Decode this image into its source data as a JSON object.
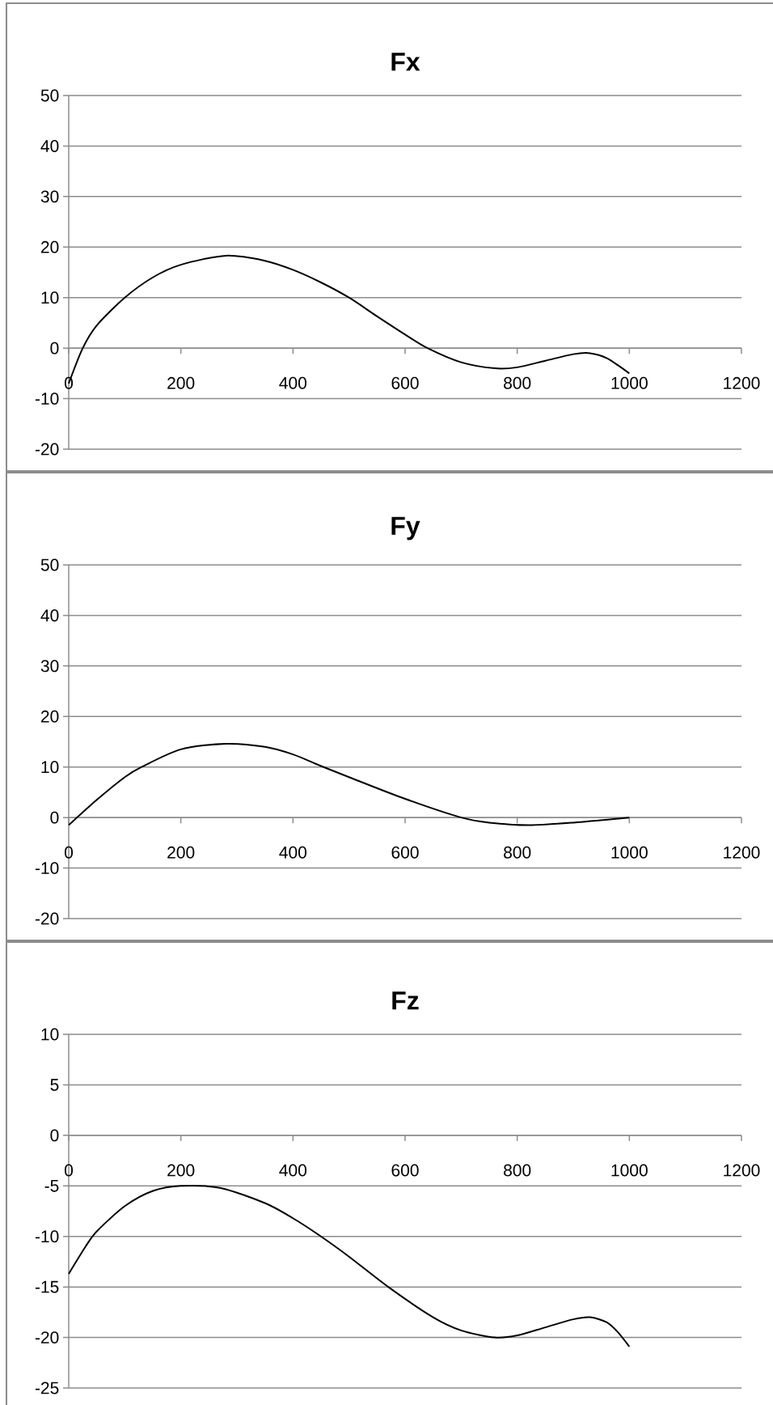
{
  "chart_data": [
    {
      "type": "line",
      "title": "Fx",
      "color": "#000000",
      "grid": "y",
      "xlim": [
        0,
        1200
      ],
      "xticks": [
        0,
        200,
        400,
        600,
        800,
        1000,
        1200
      ],
      "ylim": [
        -20,
        50
      ],
      "yticks": [
        -20,
        -10,
        0,
        10,
        20,
        30,
        40,
        50
      ],
      "x": [
        0,
        25,
        50,
        100,
        150,
        200,
        280,
        350,
        400,
        450,
        500,
        550,
        600,
        640,
        700,
        760,
        800,
        850,
        900,
        930,
        960,
        1000
      ],
      "values": [
        -7,
        0,
        4.5,
        10,
        14,
        16.5,
        18.3,
        17.3,
        15.5,
        13,
        10,
        6.3,
        2.7,
        0,
        -2.8,
        -4,
        -3.8,
        -2.5,
        -1.2,
        -1,
        -2,
        -5
      ]
    },
    {
      "type": "line",
      "title": "Fy",
      "color": "#000000",
      "grid": "y",
      "xlim": [
        0,
        1200
      ],
      "xticks": [
        0,
        200,
        400,
        600,
        800,
        1000,
        1200
      ],
      "ylim": [
        -20,
        50
      ],
      "yticks": [
        -20,
        -10,
        0,
        10,
        20,
        30,
        40,
        50
      ],
      "x": [
        0,
        50,
        100,
        130,
        200,
        280,
        350,
        400,
        450,
        500,
        600,
        700,
        750,
        820,
        900,
        1000
      ],
      "values": [
        -1.5,
        3.5,
        8,
        10,
        13.5,
        14.6,
        14,
        12.5,
        10.2,
        8,
        3.7,
        0,
        -1,
        -1.5,
        -1,
        0
      ]
    },
    {
      "type": "line",
      "title": "Fz",
      "color": "#000000",
      "grid": "y",
      "xlim": [
        0,
        1200
      ],
      "xticks": [
        0,
        200,
        400,
        600,
        800,
        1000,
        1200
      ],
      "ylim": [
        -25,
        10
      ],
      "yticks": [
        -25,
        -20,
        -15,
        -10,
        -5,
        0,
        5,
        10
      ],
      "x": [
        0,
        30,
        50,
        100,
        150,
        200,
        270,
        350,
        400,
        450,
        500,
        570,
        650,
        700,
        760,
        800,
        850,
        900,
        930,
        960,
        980,
        1000
      ],
      "values": [
        -13.7,
        -11,
        -9.5,
        -7,
        -5.5,
        -5,
        -5.2,
        -6.7,
        -8.2,
        -10,
        -12,
        -15,
        -18,
        -19.3,
        -20,
        -19.8,
        -19,
        -18.2,
        -18,
        -18.5,
        -19.5,
        -20.9
      ]
    }
  ]
}
